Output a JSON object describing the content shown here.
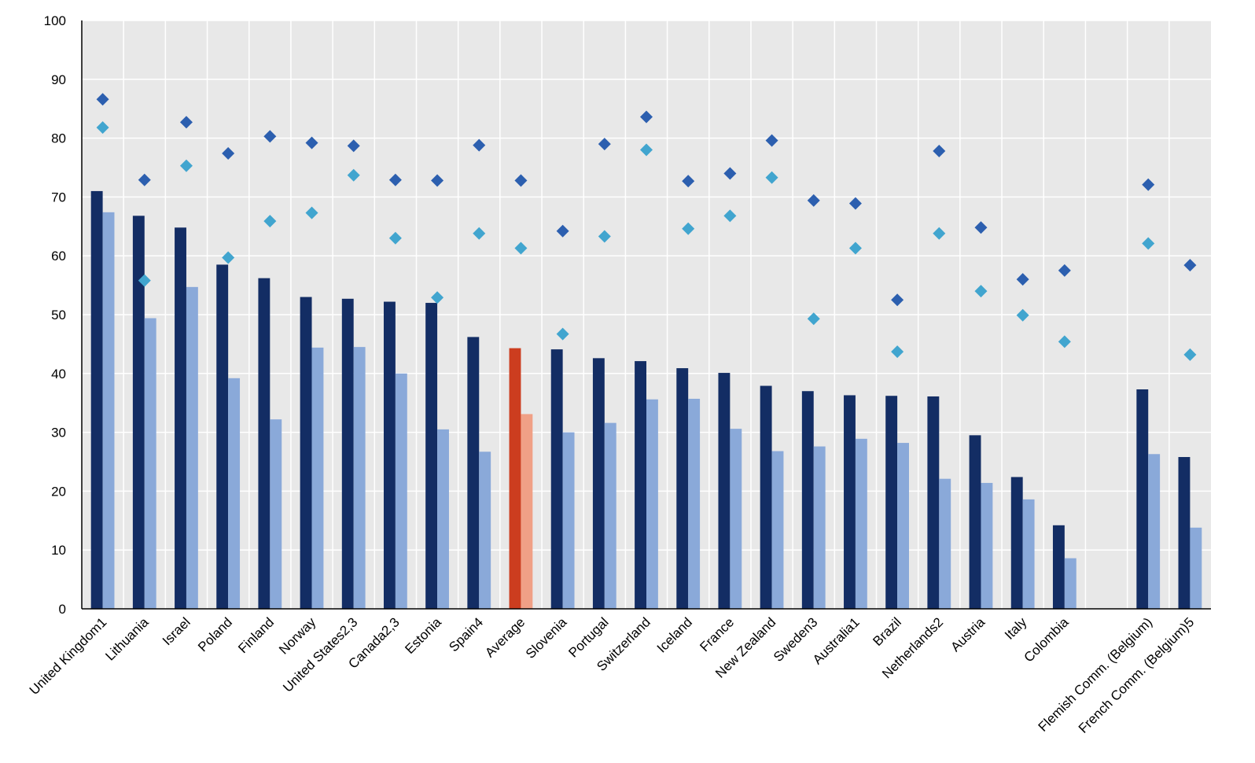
{
  "chart_data": {
    "type": "bar",
    "title": "",
    "xlabel": "",
    "ylabel": "",
    "ylim": [
      0,
      100
    ],
    "yticks": [
      0,
      10,
      20,
      30,
      40,
      50,
      60,
      70,
      80,
      90,
      100
    ],
    "grid": true,
    "legend": "none",
    "categories": [
      "United Kingdom1",
      "Lithuania",
      "Israel",
      "Poland",
      "Finland",
      "Norway",
      "United States2,3",
      "Canada2,3",
      "Estonia",
      "Spain4",
      "Average",
      "Slovenia",
      "Portugal",
      "Switzerland",
      "Iceland",
      "France",
      "New Zealand",
      "Sweden3",
      "Australia1",
      "Brazil",
      "Netherlands2",
      "Austria",
      "Italy",
      "Colombia",
      "",
      "Flemish Comm. (Belgium)",
      "French Comm. (Belgium)5"
    ],
    "highlight_category": "Average",
    "series": [
      {
        "kind": "bar",
        "color": "#132d64",
        "highlight_color": "#cc3d1f",
        "values": [
          71,
          66.8,
          64.8,
          58.5,
          56.2,
          53,
          52.7,
          52.2,
          52,
          46.2,
          44.3,
          44.1,
          42.6,
          42.1,
          40.9,
          40.1,
          37.9,
          37,
          36.3,
          36.2,
          36.1,
          29.5,
          22.4,
          14.2,
          null,
          37.3,
          25.8
        ]
      },
      {
        "kind": "bar",
        "color": "#8aa9d9",
        "highlight_color": "#f0a086",
        "values": [
          67.4,
          49.4,
          54.7,
          39.2,
          32.2,
          44.4,
          44.5,
          40,
          30.5,
          26.7,
          33.1,
          30,
          31.6,
          35.6,
          35.7,
          30.6,
          26.8,
          27.6,
          28.9,
          28.2,
          22.1,
          21.4,
          18.6,
          8.6,
          null,
          26.3,
          13.8
        ]
      },
      {
        "kind": "marker",
        "marker": "diamond",
        "color": "#2c5faf",
        "values": [
          86.6,
          72.9,
          82.7,
          77.4,
          80.3,
          79.2,
          78.7,
          72.9,
          72.8,
          78.8,
          72.8,
          64.2,
          79,
          83.6,
          72.7,
          74,
          79.6,
          69.4,
          68.9,
          52.5,
          77.8,
          64.8,
          56,
          57.5,
          null,
          72.1,
          58.4
        ]
      },
      {
        "kind": "marker",
        "marker": "diamond",
        "color": "#41a5cf",
        "values": [
          81.8,
          55.8,
          75.3,
          59.7,
          65.9,
          67.3,
          73.7,
          63,
          52.9,
          63.8,
          61.3,
          46.7,
          63.3,
          78,
          64.6,
          66.8,
          73.3,
          49.3,
          61.3,
          43.7,
          63.8,
          54,
          49.9,
          45.4,
          null,
          62.1,
          43.2
        ]
      }
    ]
  }
}
